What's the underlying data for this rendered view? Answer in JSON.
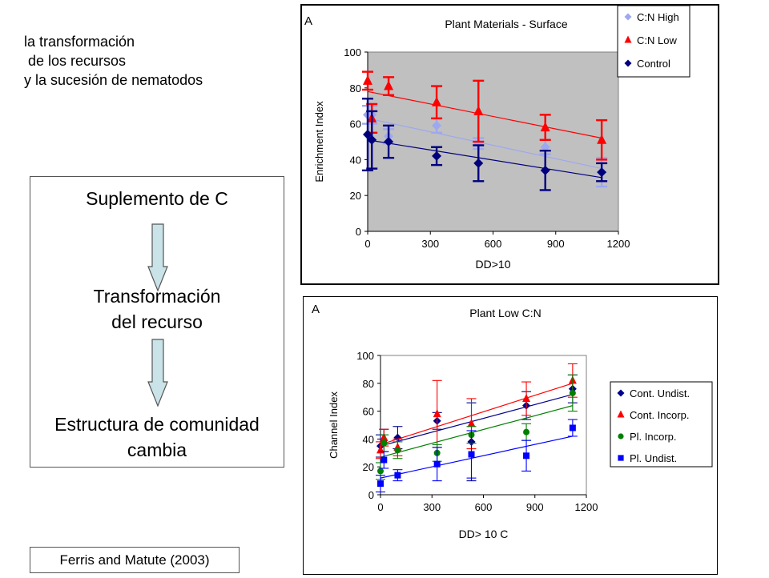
{
  "intro": {
    "lines": [
      "la transformación",
      " de los recursos",
      "y la sucesión de nematodos"
    ]
  },
  "flow": {
    "step1": "Suplemento de C",
    "step2a": "Transformación",
    "step2b": "del recurso",
    "step3a": "Estructura de comunidad",
    "step3b": "cambia"
  },
  "citation": "Ferris and Matute (2003)",
  "colors": {
    "cn_high": "#9DA8F0",
    "cn_low": "#FF0000",
    "control": "#00007F",
    "cont_undist": "#00008B",
    "cont_incorp": "#FF0000",
    "pl_incorp": "#008000",
    "pl_undist": "#0000FF",
    "arrow_fill": "#C9E3E8",
    "plot_bg": "#C0C0C0"
  },
  "chart_data": [
    {
      "type": "scatter",
      "panel_label": "A",
      "title": "Plant Materials - Surface",
      "xlabel": "DD>10",
      "ylabel": "Enrichment Index",
      "xlim": [
        0,
        1200
      ],
      "ylim": [
        0,
        100
      ],
      "xticks": [
        0,
        300,
        600,
        900,
        1200
      ],
      "yticks": [
        0,
        20,
        40,
        60,
        80,
        100
      ],
      "grid": false,
      "legend_position": "top-right",
      "series": [
        {
          "name": "C:N High",
          "color_key": "cn_high",
          "marker": "diamond",
          "x": [
            0,
            20,
            100,
            330,
            530,
            850,
            1120
          ],
          "y": [
            65,
            65,
            53,
            59,
            49,
            47,
            33
          ],
          "err": [
            5,
            5,
            4,
            4,
            3,
            4,
            8
          ],
          "trend": [
            [
              0,
              63
            ],
            [
              1120,
              35
            ]
          ]
        },
        {
          "name": "C:N Low",
          "color_key": "cn_low",
          "marker": "triangle",
          "x": [
            0,
            20,
            100,
            330,
            530,
            850,
            1120
          ],
          "y": [
            84,
            63,
            81,
            72,
            67,
            58,
            51
          ],
          "err": [
            5,
            8,
            5,
            9,
            17,
            7,
            11
          ],
          "trend": [
            [
              0,
              78
            ],
            [
              1120,
              52
            ]
          ]
        },
        {
          "name": "Control",
          "color_key": "control",
          "marker": "diamond",
          "x": [
            0,
            20,
            100,
            330,
            530,
            850,
            1120
          ],
          "y": [
            54,
            51,
            50,
            42,
            38,
            34,
            33
          ],
          "err": [
            20,
            16,
            9,
            5,
            10,
            11,
            5
          ],
          "trend": [
            [
              0,
              51
            ],
            [
              1120,
              30
            ]
          ]
        }
      ]
    },
    {
      "type": "scatter",
      "panel_label": "A",
      "title": "Plant Low C:N",
      "xlabel": "DD> 10 C",
      "ylabel": "Channel Index",
      "xlim": [
        0,
        1200
      ],
      "ylim": [
        0,
        100
      ],
      "xticks": [
        0,
        300,
        600,
        900,
        1200
      ],
      "yticks": [
        0,
        20,
        40,
        60,
        80,
        100
      ],
      "grid": false,
      "legend_position": "right",
      "series": [
        {
          "name": "Cont. Undist.",
          "color_key": "cont_undist",
          "marker": "diamond",
          "x": [
            0,
            20,
            100,
            330,
            530,
            850,
            1120
          ],
          "y": [
            35,
            39,
            41,
            53,
            38,
            64,
            76
          ],
          "err": [
            8,
            8,
            8,
            6,
            28,
            10,
            10
          ],
          "trend": [
            [
              0,
              35
            ],
            [
              1120,
              72
            ]
          ]
        },
        {
          "name": "Cont. Incorp.",
          "color_key": "cont_incorp",
          "marker": "triangle",
          "x": [
            0,
            20,
            100,
            330,
            530,
            850,
            1120
          ],
          "y": [
            32,
            41,
            34,
            58,
            51,
            69,
            82
          ],
          "err": [
            6,
            6,
            6,
            24,
            18,
            12,
            12
          ],
          "trend": [
            [
              0,
              36
            ],
            [
              1120,
              80
            ]
          ]
        },
        {
          "name": "Pl. Incorp.",
          "color_key": "pl_incorp",
          "marker": "circle",
          "x": [
            0,
            20,
            100,
            330,
            530,
            850,
            1120
          ],
          "y": [
            17,
            37,
            32,
            30,
            43,
            45,
            73
          ],
          "err": [
            6,
            6,
            6,
            6,
            6,
            6,
            13
          ],
          "trend": [
            [
              0,
              27
            ],
            [
              1120,
              64
            ]
          ]
        },
        {
          "name": "Pl. Undist.",
          "color_key": "pl_undist",
          "marker": "square",
          "x": [
            0,
            20,
            100,
            330,
            530,
            850,
            1120
          ],
          "y": [
            8,
            25,
            14,
            22,
            29,
            28,
            48
          ],
          "err": [
            6,
            6,
            4,
            12,
            17,
            11,
            6
          ],
          "trend": [
            [
              0,
              12
            ],
            [
              1120,
              42
            ]
          ]
        }
      ]
    }
  ]
}
